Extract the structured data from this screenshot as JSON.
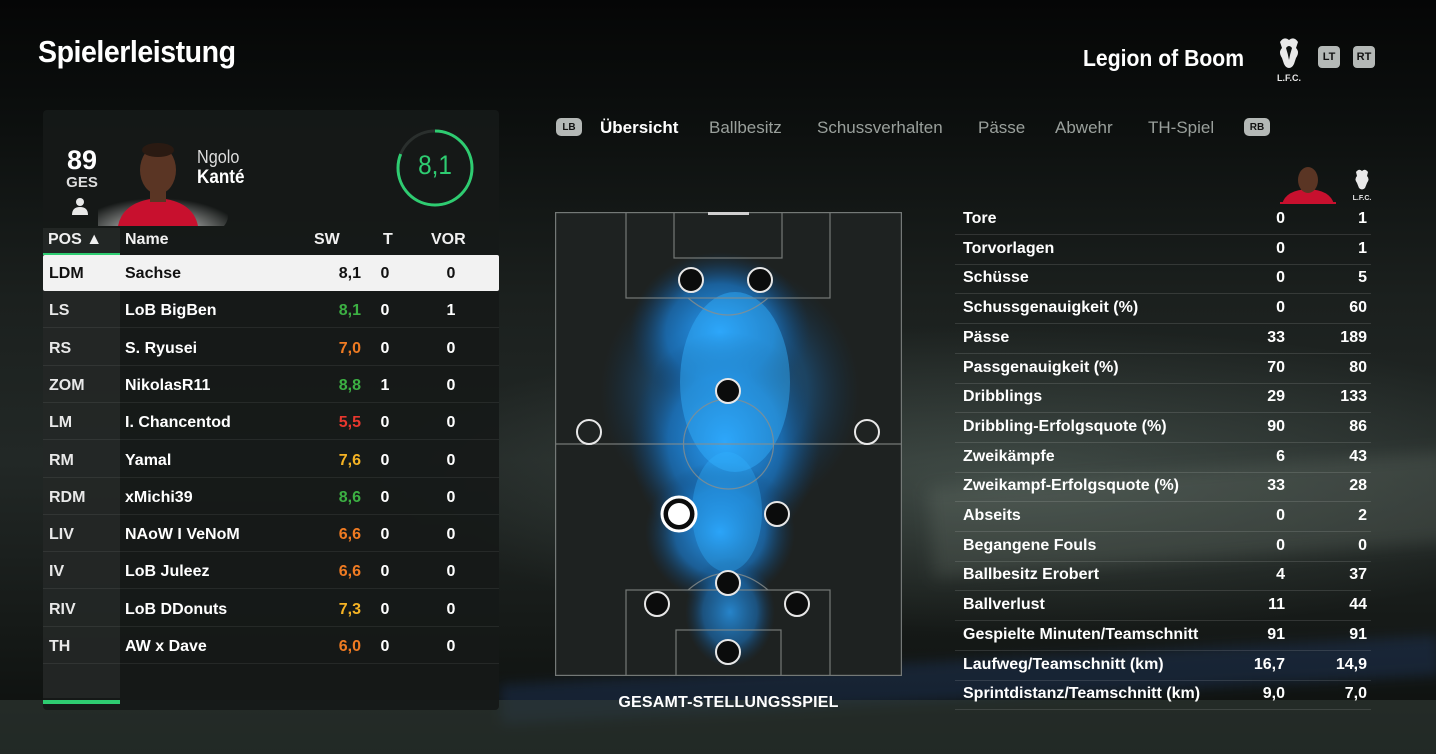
{
  "header": {
    "title": "Spielerleistung",
    "team_name": "Legion of Boom",
    "crest_text": "L.F.C.",
    "btn_lt": "LT",
    "btn_rt": "RT"
  },
  "player_card": {
    "rating": "89",
    "position": "GES",
    "first_name": "Ngolo",
    "last_name": "Kanté",
    "match_score": "8,1",
    "match_score_fraction": 0.81
  },
  "table": {
    "headers": {
      "pos": "POS ▲",
      "name": "Name",
      "sw": "SW",
      "t": "T",
      "vor": "VOR"
    },
    "rows": [
      {
        "pos": "LDM",
        "name": "Sachse",
        "sw": "8,1",
        "t": "0",
        "vor": "0",
        "color": "#111111"
      },
      {
        "pos": "LS",
        "name": "LoB BigBen",
        "sw": "8,1",
        "t": "0",
        "vor": "1",
        "color": "#3cb043"
      },
      {
        "pos": "RS",
        "name": "S. Ryusei",
        "sw": "7,0",
        "t": "0",
        "vor": "0",
        "color": "#f07b22"
      },
      {
        "pos": "ZOM",
        "name": "NikolasR11",
        "sw": "8,8",
        "t": "1",
        "vor": "0",
        "color": "#3cb043"
      },
      {
        "pos": "LM",
        "name": "I. Chancentod",
        "sw": "5,5",
        "t": "0",
        "vor": "0",
        "color": "#e8382e"
      },
      {
        "pos": "RM",
        "name": "Yamal",
        "sw": "7,6",
        "t": "0",
        "vor": "0",
        "color": "#f5b324"
      },
      {
        "pos": "RDM",
        "name": "xMichi39",
        "sw": "8,6",
        "t": "0",
        "vor": "0",
        "color": "#3cb043"
      },
      {
        "pos": "LIV",
        "name": "NAoW I VeNoM",
        "sw": "6,6",
        "t": "0",
        "vor": "0",
        "color": "#f07b22"
      },
      {
        "pos": "IV",
        "name": "LoB Juleez",
        "sw": "6,6",
        "t": "0",
        "vor": "0",
        "color": "#f07b22"
      },
      {
        "pos": "RIV",
        "name": "LoB DDonuts",
        "sw": "7,3",
        "t": "0",
        "vor": "0",
        "color": "#f5b324"
      },
      {
        "pos": "TH",
        "name": "AW x Dave",
        "sw": "6,0",
        "t": "0",
        "vor": "0",
        "color": "#f07b22"
      }
    ]
  },
  "tabs": {
    "lb": "LB",
    "rb": "RB",
    "items": [
      "Übersicht",
      "Ballbesitz",
      "Schussverhalten",
      "Pässe",
      "Abwehr",
      "TH-Spiel"
    ]
  },
  "pitch": {
    "label": "GESAMT-STELLUNGSSPIEL"
  },
  "stats": {
    "rows": [
      {
        "label": "Tore",
        "player": "0",
        "team": "1"
      },
      {
        "label": "Torvorlagen",
        "player": "0",
        "team": "1"
      },
      {
        "label": "Schüsse",
        "player": "0",
        "team": "5"
      },
      {
        "label": "Schussgenauigkeit (%)",
        "player": "0",
        "team": "60"
      },
      {
        "label": "Pässe",
        "player": "33",
        "team": "189"
      },
      {
        "label": "Passgenauigkeit (%)",
        "player": "70",
        "team": "80"
      },
      {
        "label": "Dribblings",
        "player": "29",
        "team": "133"
      },
      {
        "label": "Dribbling-Erfolgsquote (%)",
        "player": "90",
        "team": "86"
      },
      {
        "label": "Zweikämpfe",
        "player": "6",
        "team": "43"
      },
      {
        "label": "Zweikampf-Erfolgsquote (%)",
        "player": "33",
        "team": "28"
      },
      {
        "label": "Abseits",
        "player": "0",
        "team": "2"
      },
      {
        "label": "Begangene Fouls",
        "player": "0",
        "team": "0"
      },
      {
        "label": "Ballbesitz Erobert",
        "player": "4",
        "team": "37"
      },
      {
        "label": "Ballverlust",
        "player": "11",
        "team": "44"
      },
      {
        "label": "Gespielte Minuten/Teamschnitt",
        "player": "91",
        "team": "91"
      },
      {
        "label": "Laufweg/Teamschnitt (km)",
        "player": "16,7",
        "team": "14,9"
      },
      {
        "label": "Sprintdistanz/Teamschnitt (km)",
        "player": "9,0",
        "team": "7,0"
      }
    ]
  }
}
